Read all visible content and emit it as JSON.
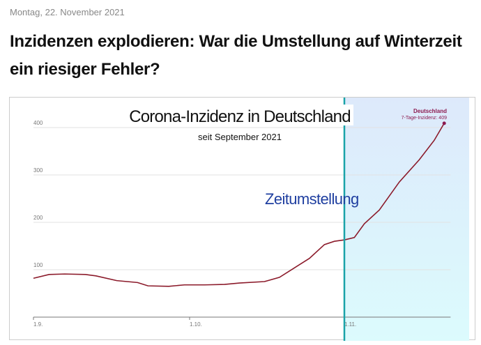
{
  "article": {
    "date": "Montag, 22. November 2021",
    "headline": "Inzidenzen explodieren: War die Umstellung auf Winterzeit ein riesiger Fehler?"
  },
  "chart_data": {
    "type": "line",
    "title": "Corona-Inzidenz in Deutschland",
    "subtitle": "seit September 2021",
    "xlabel": "",
    "ylabel": "7-Tage-Inzidenz",
    "x_unit": "days since 1 Sep 2021",
    "xlim": [
      0,
      82
    ],
    "ylim": [
      0,
      400
    ],
    "grid": true,
    "y_ticks": [
      100,
      200,
      300,
      400
    ],
    "y_tick_labels": [
      "100",
      "200",
      "300",
      "400"
    ],
    "x_ticks": [
      0,
      30,
      61
    ],
    "x_tick_labels": [
      "1.9.",
      "1.10.",
      "1.11."
    ],
    "series": [
      {
        "name": "Deutschland",
        "color": "#8b1a2a",
        "x": [
          0,
          3,
          6,
          10,
          12,
          16,
          20,
          22,
          26,
          29,
          33,
          37,
          40,
          45,
          48,
          51,
          54,
          57,
          59,
          61,
          63,
          65,
          68,
          72,
          76,
          79,
          81
        ],
        "y": [
          82,
          90,
          91,
          90,
          87,
          77,
          73,
          66,
          65,
          68,
          68,
          69,
          72,
          75,
          84,
          104,
          124,
          153,
          160,
          163,
          168,
          197,
          226,
          285,
          332,
          373,
          409
        ]
      }
    ],
    "annotations": {
      "event_label": "Zeitumstellung",
      "event_x": 61,
      "end_label_title": "Deutschland",
      "end_label_value": "7-Tage-Inzidenz: 409"
    },
    "colors": {
      "event_line": "#1aa3a8",
      "highlight_top": "#dde9fb",
      "highlight_bottom": "#dcfbfd",
      "end_label": "#8c1a4f"
    }
  }
}
